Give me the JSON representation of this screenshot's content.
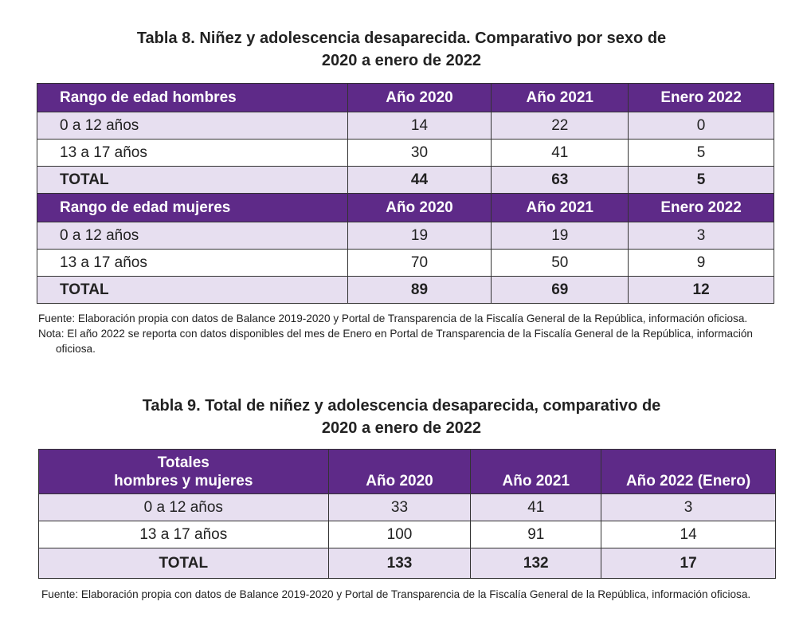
{
  "table8": {
    "title_lines": [
      "Tabla 8. Niñez y adolescencia desaparecida. Comparativo por sexo de",
      "2020 a enero de 2022"
    ],
    "sections": [
      {
        "header": [
          "Rango de edad hombres",
          "Año 2020",
          "Año 2021",
          "Enero 2022"
        ],
        "rows": [
          [
            "0 a 12 años",
            14,
            22,
            0
          ],
          [
            "13 a 17 años",
            30,
            41,
            5
          ],
          [
            "TOTAL",
            44,
            63,
            5
          ]
        ]
      },
      {
        "header": [
          "Rango de edad mujeres",
          "Año 2020",
          "Año 2021",
          "Enero 2022"
        ],
        "rows": [
          [
            "0 a 12 años",
            19,
            19,
            3
          ],
          [
            "13 a 17 años",
            70,
            50,
            9
          ],
          [
            "TOTAL",
            89,
            69,
            12
          ]
        ]
      }
    ],
    "notes": [
      "Fuente: Elaboración propia con datos de Balance 2019-2020 y Portal de Transparencia de la Fiscalía General de la República, información oficiosa.",
      "Nota: El año 2022 se reporta con datos disponibles del mes de Enero en Portal de Transparencia de la Fiscalía General de la República, información oficiosa."
    ]
  },
  "table9": {
    "title_lines": [
      "Tabla 9. Total de niñez y adolescencia desaparecida, comparativo de",
      "2020 a enero de 2022"
    ],
    "header": [
      "Totales\nhombres y mujeres",
      "Año 2020",
      "Año 2021",
      "Año 2022 (Enero)"
    ],
    "rows": [
      [
        "0 a 12 años",
        33,
        41,
        3
      ],
      [
        "13 a 17 años",
        100,
        91,
        14
      ],
      [
        "TOTAL",
        133,
        132,
        17
      ]
    ],
    "notes": [
      "Fuente: Elaboración propia con datos de Balance 2019-2020 y Portal de Transparencia de la Fiscalía General de la República, información oficiosa."
    ]
  }
}
